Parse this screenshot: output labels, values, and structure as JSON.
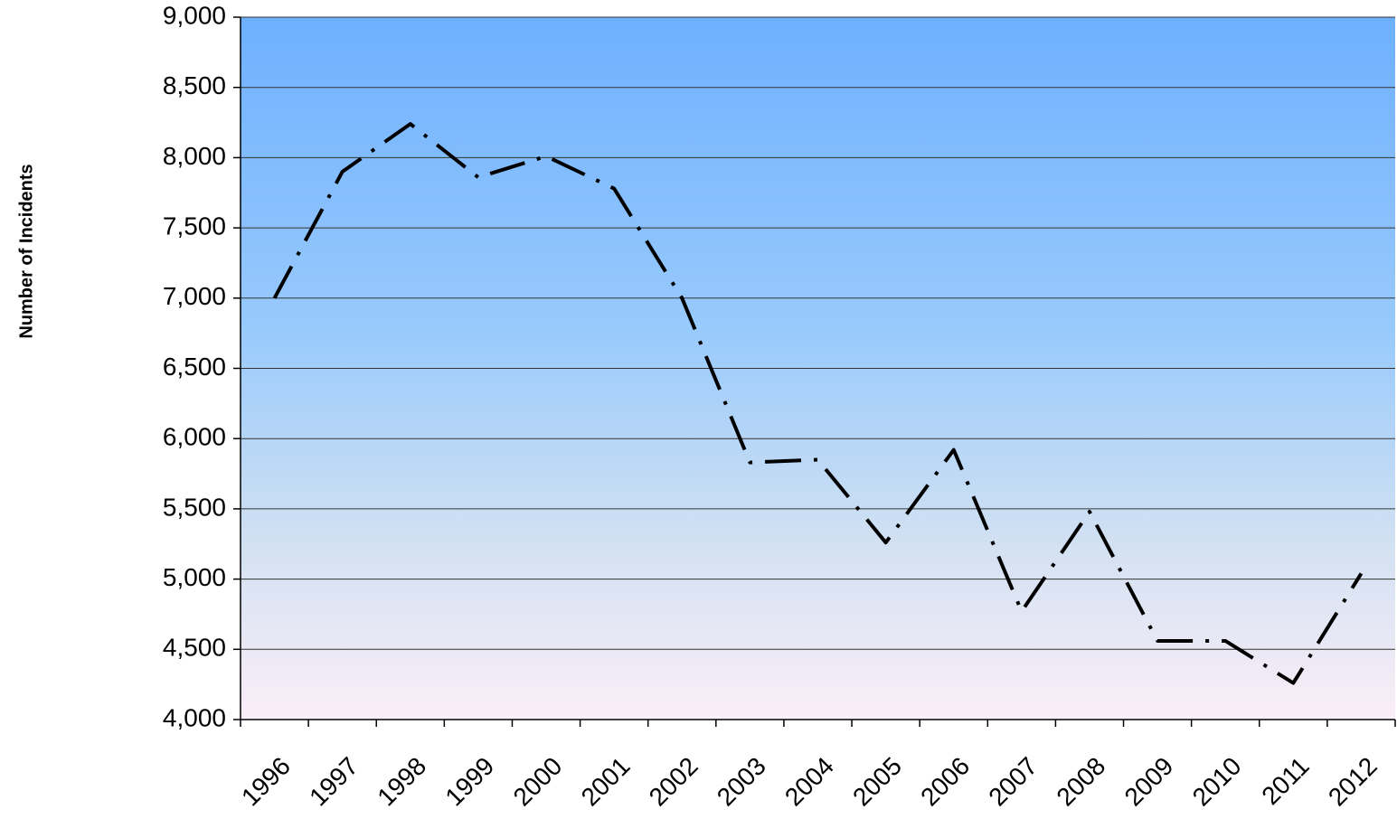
{
  "chart_data": {
    "type": "line",
    "y_label": "Number of Incidents",
    "categories": [
      "1996",
      "1997",
      "1998",
      "1999",
      "2000",
      "2001",
      "2002",
      "2003",
      "2004",
      "2005",
      "2006",
      "2007",
      "2008",
      "2009",
      "2010",
      "2011",
      "2012"
    ],
    "values": [
      7000,
      7900,
      8240,
      7860,
      8010,
      7780,
      7000,
      5830,
      5850,
      5260,
      5920,
      4770,
      5480,
      4560,
      4560,
      4260,
      5040
    ],
    "color": "#000000",
    "line_style": "dash-dot",
    "ylim": [
      4000,
      9000
    ],
    "yticks": [
      {
        "value": 4000,
        "label": "4,000"
      },
      {
        "value": 4500,
        "label": "4,500"
      },
      {
        "value": 5000,
        "label": "5,000"
      },
      {
        "value": 5500,
        "label": "5,500"
      },
      {
        "value": 6000,
        "label": "6,000"
      },
      {
        "value": 6500,
        "label": "6,500"
      },
      {
        "value": 7000,
        "label": "7,000"
      },
      {
        "value": 7500,
        "label": "7,500"
      },
      {
        "value": 8000,
        "label": "8,000"
      },
      {
        "value": 8500,
        "label": "8,500"
      },
      {
        "value": 9000,
        "label": "9,000"
      }
    ],
    "grid": true
  }
}
